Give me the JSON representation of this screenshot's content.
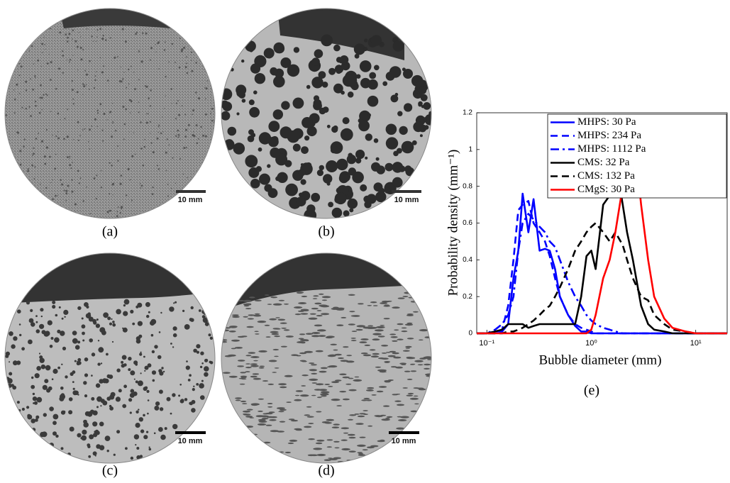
{
  "panels": [
    {
      "label": "(a)",
      "scale_bar": "10 mm"
    },
    {
      "label": "(b)",
      "scale_bar": "10 mm"
    },
    {
      "label": "(c)",
      "scale_bar": "10 mm"
    },
    {
      "label": "(d)",
      "scale_bar": "10 mm"
    }
  ],
  "chart_data": {
    "type": "line",
    "label": "(e)",
    "xlabel": "Bubble diameter (mm)",
    "ylabel": "Probability density (mm⁻¹)",
    "xscale": "log",
    "xlim": [
      0.08,
      20
    ],
    "xticks": [
      {
        "value": 0.1,
        "label": "10⁻¹"
      },
      {
        "value": 1,
        "label": "10⁰"
      },
      {
        "value": 10,
        "label": "10¹"
      }
    ],
    "ylim": [
      0,
      1.2
    ],
    "yticks": [
      0,
      0.2,
      0.4,
      0.6,
      0.8,
      1,
      1.2
    ],
    "legend": "upper right",
    "x": [
      0.08,
      0.1,
      0.12,
      0.14,
      0.16,
      0.18,
      0.2,
      0.22,
      0.25,
      0.28,
      0.32,
      0.36,
      0.4,
      0.45,
      0.5,
      0.6,
      0.7,
      0.8,
      0.9,
      1,
      1.1,
      1.3,
      1.5,
      1.7,
      2,
      2.2,
      2.5,
      3,
      3.5,
      4,
      5,
      6,
      8,
      10,
      15,
      20
    ],
    "series": [
      {
        "name": "MHPS: 30 Pa",
        "color": "#0000ff",
        "dash": "solid",
        "values": [
          0,
          0,
          0.01,
          0.01,
          0.05,
          0.3,
          0.45,
          0.76,
          0.55,
          0.73,
          0.45,
          0.46,
          0.45,
          0.35,
          0.2,
          0.1,
          0.04,
          0.01,
          0.01,
          0,
          0,
          0,
          0,
          0,
          0,
          0,
          0,
          0,
          0,
          0,
          0,
          0,
          0,
          0,
          0,
          0
        ]
      },
      {
        "name": "MHPS: 234 Pa",
        "color": "#0000ff",
        "dash": "dashed",
        "values": [
          0,
          0,
          0,
          0.02,
          0.15,
          0.4,
          0.67,
          0.7,
          0.72,
          0.6,
          0.55,
          0.5,
          0.42,
          0.3,
          0.2,
          0.1,
          0.05,
          0.03,
          0.02,
          0.01,
          0,
          0,
          0,
          0,
          0,
          0,
          0,
          0,
          0,
          0,
          0,
          0,
          0,
          0,
          0,
          0
        ]
      },
      {
        "name": "MHPS: 1112 Pa",
        "color": "#0000ff",
        "dash": "dashdot",
        "values": [
          0,
          0,
          0.02,
          0.05,
          0.1,
          0.2,
          0.45,
          0.6,
          0.65,
          0.62,
          0.58,
          0.55,
          0.5,
          0.47,
          0.4,
          0.28,
          0.2,
          0.15,
          0.1,
          0.07,
          0.05,
          0.03,
          0.02,
          0.01,
          0,
          0,
          0,
          0,
          0,
          0,
          0,
          0,
          0,
          0,
          0,
          0
        ]
      },
      {
        "name": "CMS: 32 Pa",
        "color": "#000000",
        "dash": "solid",
        "values": [
          0,
          0,
          0.01,
          0.02,
          0.05,
          0.05,
          0.05,
          0.05,
          0.03,
          0.04,
          0.05,
          0.05,
          0.05,
          0.05,
          0.05,
          0.05,
          0.05,
          0.2,
          0.42,
          0.45,
          0.35,
          0.7,
          0.75,
          0.95,
          0.7,
          0.55,
          0.4,
          0.15,
          0.05,
          0.02,
          0.01,
          0,
          0,
          0,
          0,
          0
        ]
      },
      {
        "name": "CMS: 132 Pa",
        "color": "#000000",
        "dash": "dashed",
        "values": [
          0,
          0,
          0,
          0,
          0.01,
          0.01,
          0.02,
          0.03,
          0.05,
          0.07,
          0.1,
          0.13,
          0.15,
          0.2,
          0.25,
          0.35,
          0.45,
          0.5,
          0.55,
          0.58,
          0.6,
          0.55,
          0.5,
          0.55,
          0.48,
          0.4,
          0.3,
          0.2,
          0.18,
          0.1,
          0.05,
          0.02,
          0.01,
          0,
          0,
          0
        ]
      },
      {
        "name": "CMgS: 30 Pa",
        "color": "#ff0000",
        "dash": "solid",
        "values": [
          0,
          0,
          0,
          0,
          0,
          0,
          0,
          0,
          0,
          0,
          0,
          0,
          0,
          0,
          0,
          0,
          0,
          0,
          0,
          0.02,
          0.1,
          0.3,
          0.4,
          0.55,
          0.8,
          1.03,
          1.13,
          0.7,
          0.4,
          0.2,
          0.08,
          0.03,
          0.01,
          0,
          0,
          0
        ]
      }
    ]
  }
}
